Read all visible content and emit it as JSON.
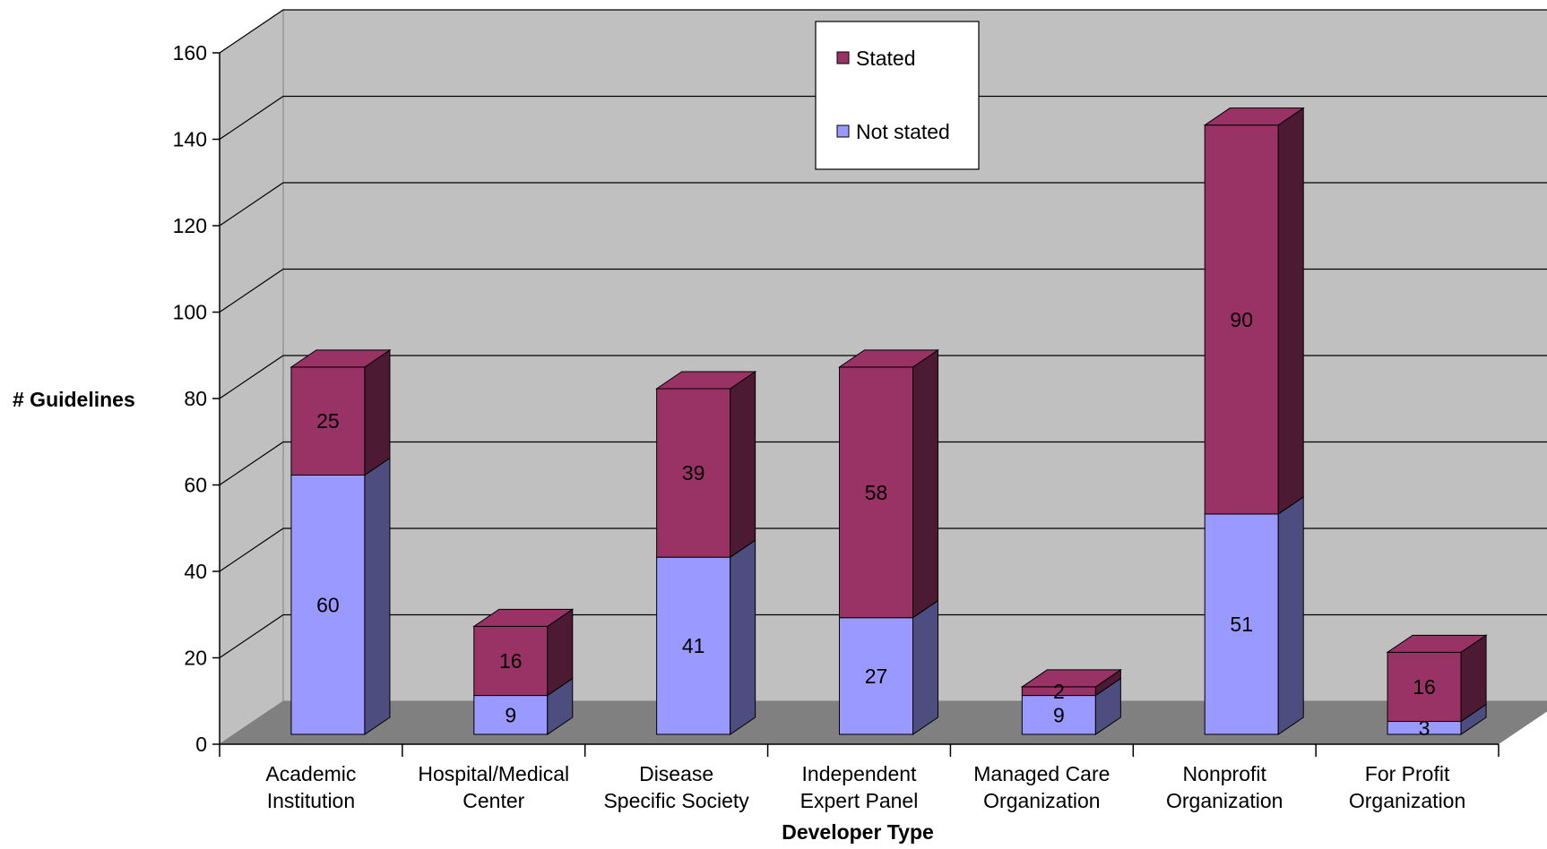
{
  "chart_data": {
    "type": "bar",
    "stacked": true,
    "style": "3d",
    "categories": [
      [
        "Academic",
        "Institution"
      ],
      [
        "Hospital/Medical",
        "Center"
      ],
      [
        "Disease",
        "Specific Society"
      ],
      [
        "Independent",
        "Expert Panel"
      ],
      [
        "Managed Care",
        "Organization"
      ],
      [
        "Nonprofit",
        "Organization"
      ],
      [
        "For Profit",
        "Organization"
      ]
    ],
    "series": [
      {
        "name": "Not stated",
        "values": [
          60,
          9,
          41,
          27,
          9,
          51,
          3
        ],
        "color": "#9999ff",
        "side_color": "#4d4d80"
      },
      {
        "name": "Stated",
        "values": [
          25,
          16,
          39,
          58,
          2,
          90,
          16
        ],
        "color": "#993366",
        "side_color": "#4d1a33"
      }
    ],
    "xlabel": "Developer Type",
    "ylabel": "# Guidelines",
    "ylim": [
      0,
      160
    ],
    "yticks": [
      "0",
      "20",
      "40",
      "60",
      "80",
      "100",
      "120",
      "140",
      "160"
    ],
    "grid": true,
    "legend": {
      "placement": "top-center",
      "order": [
        "Stated",
        "Not stated"
      ]
    },
    "wall_color": "#c0c0c0",
    "floor_color": "#808080"
  }
}
